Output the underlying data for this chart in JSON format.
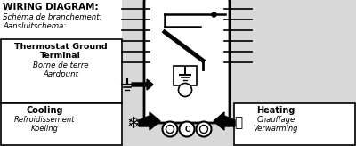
{
  "title_bold": "WIRING DIAGRAM:",
  "subtitle_lines": [
    "Schéma de branchement:",
    "Aansluitschema:"
  ],
  "ground_box_lines": [
    "Thermostat Ground",
    "Terminal",
    "Borne de terre",
    "Aardpunt"
  ],
  "cooling_lines": [
    "Cooling",
    "Refroidissement",
    "Koeling"
  ],
  "heating_lines": [
    "Heating",
    "Chauffage",
    "Verwarming"
  ],
  "bg_color": "#e8e8e8",
  "box_color": "#ffffff",
  "border_color": "#000000",
  "text_color": "#000000",
  "fig_w": 4.0,
  "fig_h": 1.64,
  "dpi": 100
}
